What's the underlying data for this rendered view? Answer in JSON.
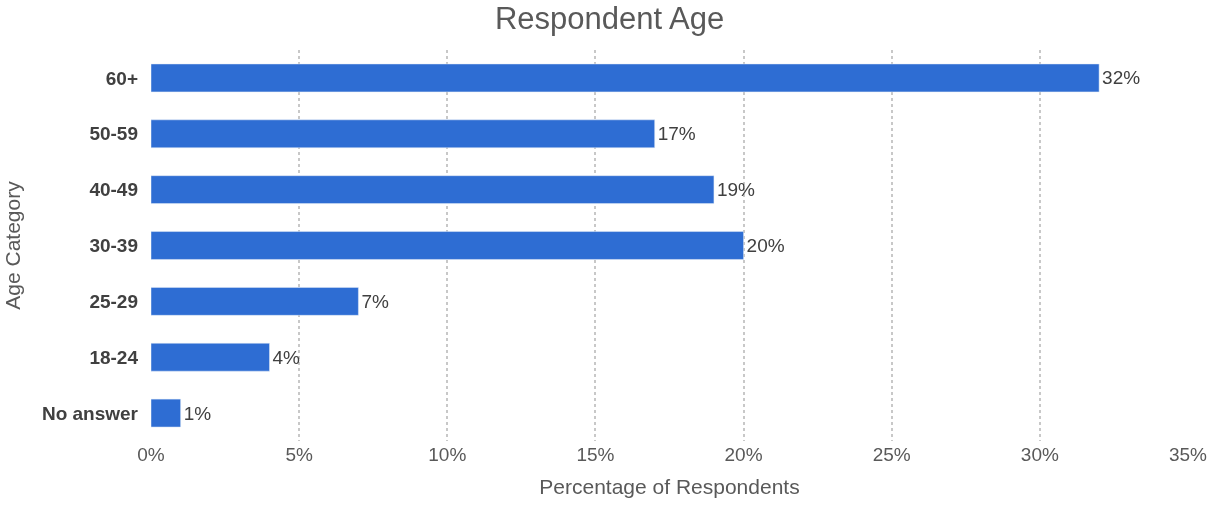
{
  "chart_data": {
    "type": "bar",
    "orientation": "horizontal",
    "title": "Respondent Age",
    "xlabel": "Percentage of Respondents",
    "ylabel": "Age Category",
    "categories": [
      "60+",
      "50-59",
      "40-49",
      "30-39",
      "25-29",
      "18-24",
      "No answer"
    ],
    "values": [
      32,
      17,
      19,
      20,
      7,
      4,
      1
    ],
    "value_labels": [
      "32%",
      "17%",
      "19%",
      "20%",
      "7%",
      "4%",
      "1%"
    ],
    "color": "#2e6dd3",
    "xlim": [
      0,
      35
    ],
    "xticks": [
      {
        "value": 0,
        "label": "0%"
      },
      {
        "value": 5,
        "label": "5%"
      },
      {
        "value": 10,
        "label": "10%"
      },
      {
        "value": 15,
        "label": "15%"
      },
      {
        "value": 20,
        "label": "20%"
      },
      {
        "value": 25,
        "label": "25%"
      },
      {
        "value": 30,
        "label": "30%"
      },
      {
        "value": 35,
        "label": "35%"
      }
    ],
    "grid": "x",
    "legend": false
  }
}
